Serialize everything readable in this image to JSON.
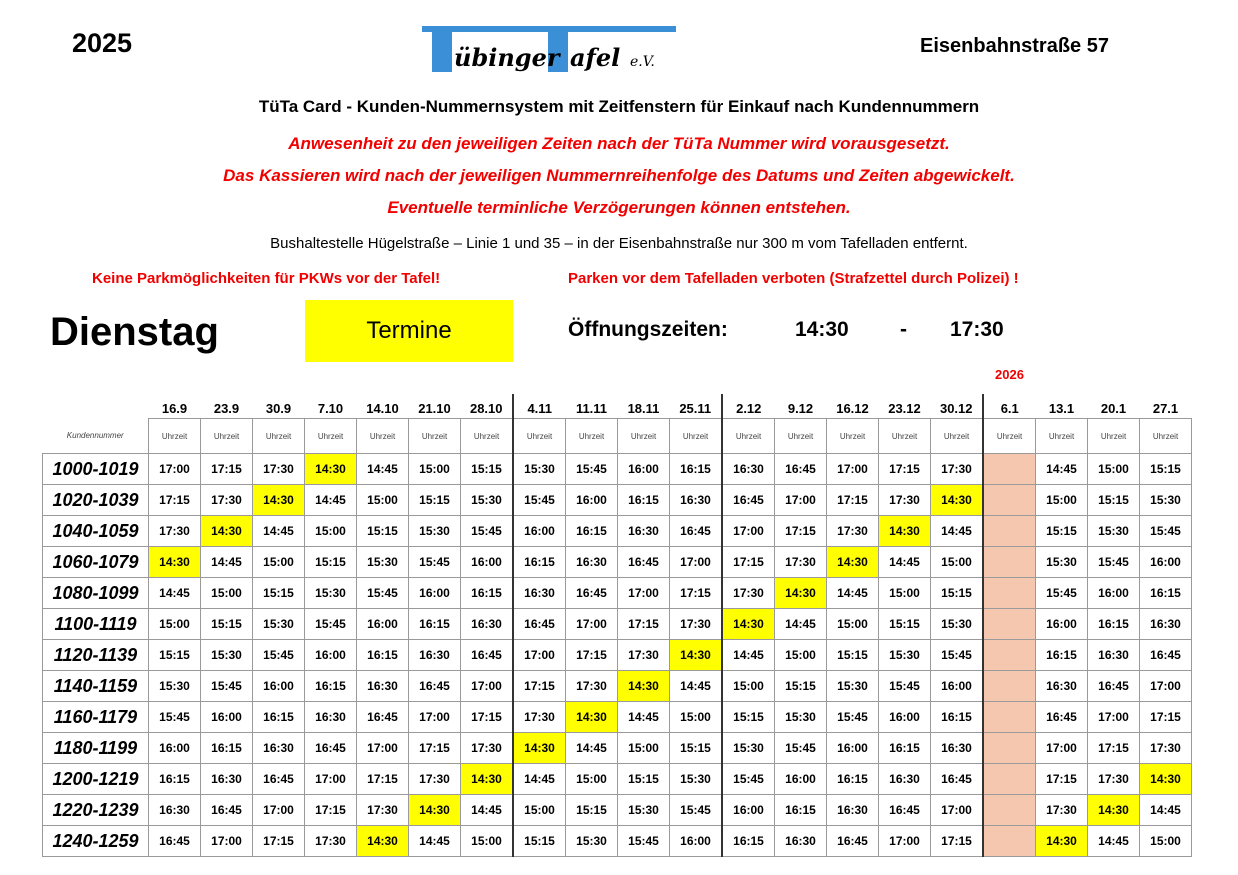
{
  "header": {
    "year": "2025",
    "address": "Eisenbahnstraße 57",
    "logo_text": "Tübinger Tafel e.V.",
    "title": "TüTa Card - Kunden-Nummernsystem mit Zeitfenstern für Einkauf nach Kundennummern",
    "notices": [
      "Anwesenheit zu den jeweiligen Zeiten nach der TüTa Nummer wird vorausgesetzt.",
      "Das Kassieren wird nach der jeweiligen Nummernreihenfolge des Datums und Zeiten abgewickelt.",
      "Eventuelle terminliche Verzögerungen können entstehen."
    ],
    "bus": "Bushaltestelle Hügelstraße – Linie 1 und 35 – in der Eisenbahnstraße nur 300 m vom Tafelladen entfernt.",
    "parking_left": "Keine Parkmöglichkeiten für PKWs vor der Tafel!",
    "parking_right": "Parken vor dem Tafelladen verboten (Strafzettel durch Polizei) !"
  },
  "day": "Dienstag",
  "termine": "Termine",
  "opening_label": "Öffnungszeiten:",
  "open_from": "14:30",
  "dash": "-",
  "open_to": "17:30",
  "year_2026": "2026",
  "colors": {
    "highlight": "#ffff00",
    "closed": "#f4c7ae",
    "notice": "#f20000"
  },
  "table": {
    "row_header": "Kundennummer",
    "sub_header": "Uhrzeit",
    "dates": [
      "16.9",
      "23.9",
      "30.9",
      "7.10",
      "14.10",
      "21.10",
      "28.10",
      "4.11",
      "11.11",
      "18.11",
      "25.11",
      "2.12",
      "9.12",
      "16.12",
      "23.12",
      "30.12",
      "6.1",
      "13.1",
      "20.1",
      "27.1"
    ],
    "closed_dates": [
      "6.1"
    ],
    "highlight_value": "14:30",
    "rows": [
      {
        "range": "1000-1019",
        "times": [
          "17:00",
          "17:15",
          "17:30",
          "14:30",
          "14:45",
          "15:00",
          "15:15",
          "15:30",
          "15:45",
          "16:00",
          "16:15",
          "16:30",
          "16:45",
          "17:00",
          "17:15",
          "17:30",
          "",
          "14:45",
          "15:00",
          "15:15"
        ]
      },
      {
        "range": "1020-1039",
        "times": [
          "17:15",
          "17:30",
          "14:30",
          "14:45",
          "15:00",
          "15:15",
          "15:30",
          "15:45",
          "16:00",
          "16:15",
          "16:30",
          "16:45",
          "17:00",
          "17:15",
          "17:30",
          "14:30",
          "",
          "15:00",
          "15:15",
          "15:30"
        ]
      },
      {
        "range": "1040-1059",
        "times": [
          "17:30",
          "14:30",
          "14:45",
          "15:00",
          "15:15",
          "15:30",
          "15:45",
          "16:00",
          "16:15",
          "16:30",
          "16:45",
          "17:00",
          "17:15",
          "17:30",
          "14:30",
          "14:45",
          "",
          "15:15",
          "15:30",
          "15:45"
        ]
      },
      {
        "range": "1060-1079",
        "times": [
          "14:30",
          "14:45",
          "15:00",
          "15:15",
          "15:30",
          "15:45",
          "16:00",
          "16:15",
          "16:30",
          "16:45",
          "17:00",
          "17:15",
          "17:30",
          "14:30",
          "14:45",
          "15:00",
          "",
          "15:30",
          "15:45",
          "16:00"
        ]
      },
      {
        "range": "1080-1099",
        "times": [
          "14:45",
          "15:00",
          "15:15",
          "15:30",
          "15:45",
          "16:00",
          "16:15",
          "16:30",
          "16:45",
          "17:00",
          "17:15",
          "17:30",
          "14:30",
          "14:45",
          "15:00",
          "15:15",
          "",
          "15:45",
          "16:00",
          "16:15"
        ]
      },
      {
        "range": "1100-1119",
        "times": [
          "15:00",
          "15:15",
          "15:30",
          "15:45",
          "16:00",
          "16:15",
          "16:30",
          "16:45",
          "17:00",
          "17:15",
          "17:30",
          "14:30",
          "14:45",
          "15:00",
          "15:15",
          "15:30",
          "",
          "16:00",
          "16:15",
          "16:30"
        ]
      },
      {
        "range": "1120-1139",
        "times": [
          "15:15",
          "15:30",
          "15:45",
          "16:00",
          "16:15",
          "16:30",
          "16:45",
          "17:00",
          "17:15",
          "17:30",
          "14:30",
          "14:45",
          "15:00",
          "15:15",
          "15:30",
          "15:45",
          "",
          "16:15",
          "16:30",
          "16:45"
        ]
      },
      {
        "range": "1140-1159",
        "times": [
          "15:30",
          "15:45",
          "16:00",
          "16:15",
          "16:30",
          "16:45",
          "17:00",
          "17:15",
          "17:30",
          "14:30",
          "14:45",
          "15:00",
          "15:15",
          "15:30",
          "15:45",
          "16:00",
          "",
          "16:30",
          "16:45",
          "17:00"
        ]
      },
      {
        "range": "1160-1179",
        "times": [
          "15:45",
          "16:00",
          "16:15",
          "16:30",
          "16:45",
          "17:00",
          "17:15",
          "17:30",
          "14:30",
          "14:45",
          "15:00",
          "15:15",
          "15:30",
          "15:45",
          "16:00",
          "16:15",
          "",
          "16:45",
          "17:00",
          "17:15"
        ]
      },
      {
        "range": "1180-1199",
        "times": [
          "16:00",
          "16:15",
          "16:30",
          "16:45",
          "17:00",
          "17:15",
          "17:30",
          "14:30",
          "14:45",
          "15:00",
          "15:15",
          "15:30",
          "15:45",
          "16:00",
          "16:15",
          "16:30",
          "",
          "17:00",
          "17:15",
          "17:30"
        ]
      },
      {
        "range": "1200-1219",
        "times": [
          "16:15",
          "16:30",
          "16:45",
          "17:00",
          "17:15",
          "17:30",
          "14:30",
          "14:45",
          "15:00",
          "15:15",
          "15:30",
          "15:45",
          "16:00",
          "16:15",
          "16:30",
          "16:45",
          "",
          "17:15",
          "17:30",
          "14:30"
        ]
      },
      {
        "range": "1220-1239",
        "times": [
          "16:30",
          "16:45",
          "17:00",
          "17:15",
          "17:30",
          "14:30",
          "14:45",
          "15:00",
          "15:15",
          "15:30",
          "15:45",
          "16:00",
          "16:15",
          "16:30",
          "16:45",
          "17:00",
          "",
          "17:30",
          "14:30",
          "14:45"
        ]
      },
      {
        "range": "1240-1259",
        "times": [
          "16:45",
          "17:00",
          "17:15",
          "17:30",
          "14:30",
          "14:45",
          "15:00",
          "15:15",
          "15:30",
          "15:45",
          "16:00",
          "16:15",
          "16:30",
          "16:45",
          "17:00",
          "17:15",
          "",
          "14:30",
          "14:45",
          "15:00"
        ]
      }
    ]
  }
}
